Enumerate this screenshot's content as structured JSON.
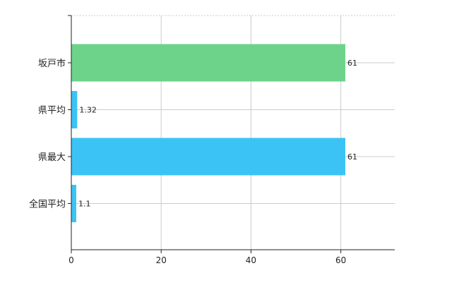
{
  "chart_data": {
    "type": "bar",
    "orientation": "horizontal",
    "title": "",
    "xlabel": "",
    "ylabel": "",
    "categories": [
      "坂戸市",
      "県平均",
      "県最大",
      "全国平均"
    ],
    "values": [
      61,
      1.32,
      61,
      1.1
    ],
    "data_labels": [
      "61",
      "1.32",
      "61",
      "1.1"
    ],
    "bar_colors": [
      "#6dd38a",
      "#3cc3f5",
      "#3cc3f5",
      "#3cc3f5"
    ],
    "xlim": [
      0,
      72
    ],
    "x_ticks": [
      0,
      20,
      40,
      60
    ],
    "grid": true,
    "legend": "none"
  }
}
